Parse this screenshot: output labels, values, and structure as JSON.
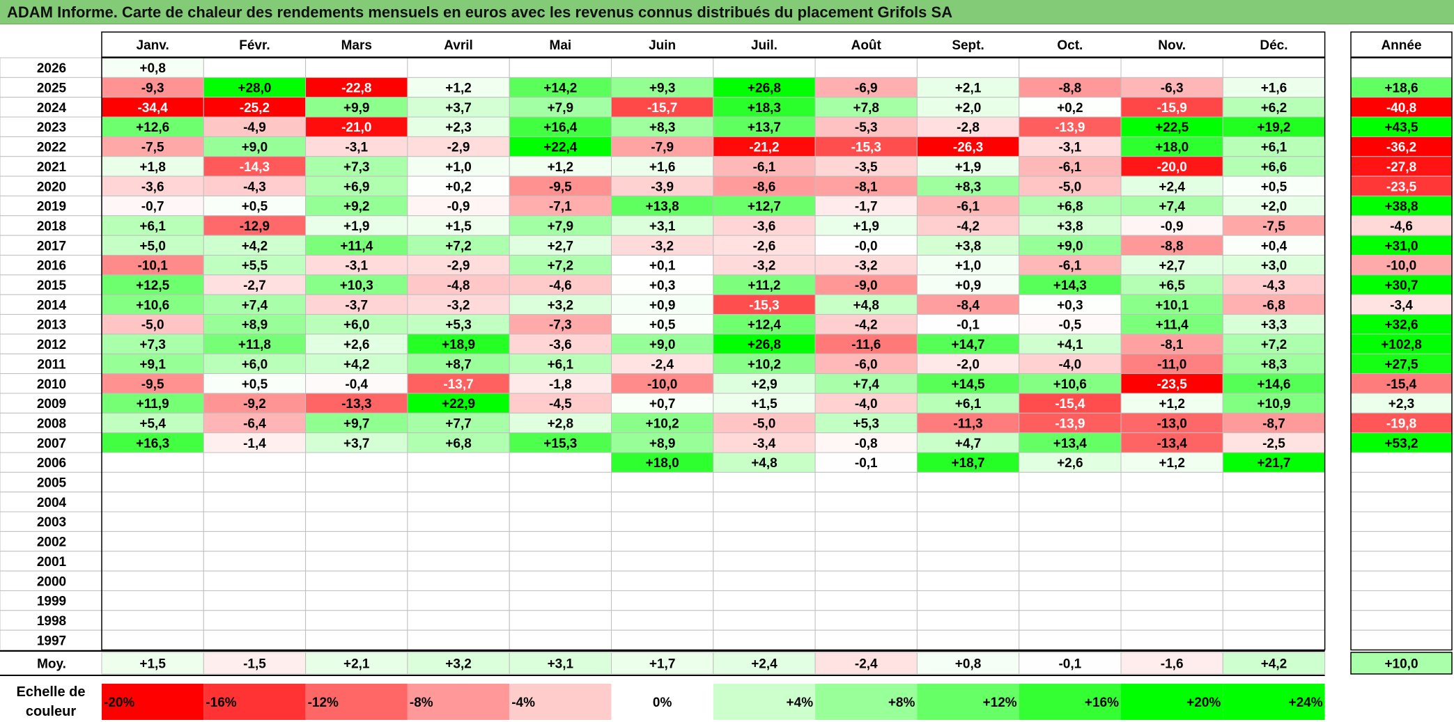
{
  "title": "ADAM Informe. Carte de chaleur des rendements mensuels en euros avec les revenus connus distribués du placement Grifols SA",
  "colors": {
    "title_bar": "#84cb77",
    "neg_max": "#ff0000",
    "neutral": "#ffffff",
    "pos_max": "#00ff00"
  },
  "chart_data": {
    "type": "heatmap",
    "title": "ADAM Informe. Carte de chaleur des rendements mensuels en euros avec les revenus connus distribués du placement Grifols SA",
    "columns": [
      "Janv.",
      "Févr.",
      "Mars",
      "Avril",
      "Mai",
      "Juin",
      "Juil.",
      "Août",
      "Sept.",
      "Oct.",
      "Nov.",
      "Déc."
    ],
    "year_column": "Année",
    "years": [
      "2026",
      "2025",
      "2024",
      "2023",
      "2022",
      "2021",
      "2020",
      "2019",
      "2018",
      "2017",
      "2016",
      "2015",
      "2014",
      "2013",
      "2012",
      "2011",
      "2010",
      "2009",
      "2008",
      "2007",
      "2006",
      "2005",
      "2004",
      "2003",
      "2002",
      "2001",
      "2000",
      "1999",
      "1998",
      "1997"
    ],
    "values": [
      [
        "+0,8",
        "",
        "",
        "",
        "",
        "",
        "",
        "",
        "",
        "",
        "",
        ""
      ],
      [
        "-9,3",
        "+28,0",
        "-22,8",
        "+1,2",
        "+14,2",
        "+9,3",
        "+26,8",
        "-6,9",
        "+2,1",
        "-8,8",
        "-6,3",
        "+1,6"
      ],
      [
        "-34,4",
        "-25,2",
        "+9,9",
        "+3,7",
        "+7,9",
        "-15,7",
        "+18,3",
        "+7,8",
        "+2,0",
        "+0,2",
        "-15,9",
        "+6,2"
      ],
      [
        "+12,6",
        "-4,9",
        "-21,0",
        "+2,3",
        "+16,4",
        "+8,3",
        "+13,7",
        "-5,3",
        "-2,8",
        "-13,9",
        "+22,5",
        "+19,2"
      ],
      [
        "-7,5",
        "+9,0",
        "-3,1",
        "-2,9",
        "+22,4",
        "-7,9",
        "-21,2",
        "-15,3",
        "-26,3",
        "-3,1",
        "+18,0",
        "+6,1"
      ],
      [
        "+1,8",
        "-14,3",
        "+7,3",
        "+1,0",
        "+1,2",
        "+1,6",
        "-6,1",
        "-3,5",
        "+1,9",
        "-6,1",
        "-20,0",
        "+6,6"
      ],
      [
        "-3,6",
        "-4,3",
        "+6,9",
        "+0,2",
        "-9,5",
        "-3,9",
        "-8,6",
        "-8,1",
        "+8,3",
        "-5,0",
        "+2,4",
        "+0,5"
      ],
      [
        "-0,7",
        "+0,5",
        "+9,2",
        "-0,9",
        "-7,1",
        "+13,8",
        "+12,7",
        "-1,7",
        "-6,1",
        "+6,8",
        "+7,4",
        "+2,0"
      ],
      [
        "+6,1",
        "-12,9",
        "+1,9",
        "+1,5",
        "+7,9",
        "+3,1",
        "-3,6",
        "+1,9",
        "-4,2",
        "+3,8",
        "-0,9",
        "-7,5"
      ],
      [
        "+5,0",
        "+4,2",
        "+11,4",
        "+7,2",
        "+2,7",
        "-3,2",
        "-2,6",
        "-0,0",
        "+3,8",
        "+9,0",
        "-8,8",
        "+0,4"
      ],
      [
        "-10,1",
        "+5,5",
        "-3,1",
        "-2,9",
        "+7,2",
        "+0,1",
        "-3,2",
        "-3,2",
        "+1,0",
        "-6,1",
        "+2,7",
        "+3,0"
      ],
      [
        "+12,5",
        "-2,7",
        "+10,3",
        "-4,8",
        "-4,6",
        "+0,3",
        "+11,2",
        "-9,0",
        "+0,9",
        "+14,3",
        "+6,5",
        "-4,3"
      ],
      [
        "+10,6",
        "+7,4",
        "-3,7",
        "-3,2",
        "+3,2",
        "+0,9",
        "-15,3",
        "+4,8",
        "-8,4",
        "+0,3",
        "+10,1",
        "-6,8"
      ],
      [
        "-5,0",
        "+8,9",
        "+6,0",
        "+5,3",
        "-7,3",
        "+0,5",
        "+12,4",
        "-4,2",
        "-0,1",
        "-0,5",
        "+11,4",
        "+3,3"
      ],
      [
        "+7,3",
        "+11,8",
        "+2,6",
        "+18,9",
        "-3,6",
        "+9,0",
        "+26,8",
        "-11,6",
        "+14,7",
        "+4,1",
        "-8,1",
        "+7,2"
      ],
      [
        "+9,1",
        "+6,0",
        "+4,2",
        "+8,7",
        "+6,1",
        "-2,4",
        "+10,2",
        "-6,0",
        "-2,0",
        "-4,0",
        "-11,0",
        "+8,3"
      ],
      [
        "-9,5",
        "+0,5",
        "-0,4",
        "-13,7",
        "-1,8",
        "-10,0",
        "+2,9",
        "+7,4",
        "+14,5",
        "+10,6",
        "-23,5",
        "+14,6"
      ],
      [
        "+11,9",
        "-9,2",
        "-13,3",
        "+22,9",
        "-4,5",
        "+0,7",
        "+1,5",
        "-4,0",
        "+6,1",
        "-15,4",
        "+1,2",
        "+10,9"
      ],
      [
        "+5,4",
        "-6,4",
        "+9,7",
        "+7,7",
        "+2,8",
        "+10,2",
        "-5,0",
        "+5,3",
        "-11,3",
        "-13,9",
        "-13,0",
        "-8,7"
      ],
      [
        "+16,3",
        "-1,4",
        "+3,7",
        "+6,8",
        "+15,3",
        "+8,9",
        "-3,4",
        "-0,8",
        "+4,7",
        "+13,4",
        "-13,4",
        "-2,5"
      ],
      [
        "",
        "",
        "",
        "",
        "",
        "+18,0",
        "+4,8",
        "-0,1",
        "+18,7",
        "+2,6",
        "+1,2",
        "+21,7"
      ],
      [
        "",
        "",
        "",
        "",
        "",
        "",
        "",
        "",
        "",
        "",
        "",
        ""
      ],
      [
        "",
        "",
        "",
        "",
        "",
        "",
        "",
        "",
        "",
        "",
        "",
        ""
      ],
      [
        "",
        "",
        "",
        "",
        "",
        "",
        "",
        "",
        "",
        "",
        "",
        ""
      ],
      [
        "",
        "",
        "",
        "",
        "",
        "",
        "",
        "",
        "",
        "",
        "",
        ""
      ],
      [
        "",
        "",
        "",
        "",
        "",
        "",
        "",
        "",
        "",
        "",
        "",
        ""
      ],
      [
        "",
        "",
        "",
        "",
        "",
        "",
        "",
        "",
        "",
        "",
        "",
        ""
      ],
      [
        "",
        "",
        "",
        "",
        "",
        "",
        "",
        "",
        "",
        "",
        "",
        ""
      ],
      [
        "",
        "",
        "",
        "",
        "",
        "",
        "",
        "",
        "",
        "",
        "",
        ""
      ],
      [
        "",
        "",
        "",
        "",
        "",
        "",
        "",
        "",
        "",
        "",
        "",
        ""
      ]
    ],
    "year_values": [
      "",
      "+18,6",
      "-40,8",
      "+43,5",
      "-36,2",
      "-27,8",
      "-23,5",
      "+38,8",
      "-4,6",
      "+31,0",
      "-10,0",
      "+30,7",
      "-3,4",
      "+32,6",
      "+102,8",
      "+27,5",
      "-15,4",
      "+2,3",
      "-19,8",
      "+53,2",
      "",
      "",
      "",
      "",
      "",
      "",
      "",
      "",
      "",
      ""
    ],
    "average_label": "Moy.",
    "averages": [
      "+1,5",
      "-1,5",
      "+2,1",
      "+3,2",
      "+3,1",
      "+1,7",
      "+2,4",
      "-2,4",
      "+0,8",
      "-0,1",
      "-1,6",
      "+4,2"
    ],
    "average_year": "+10,0",
    "scale_label": "Echelle de couleur",
    "scale": [
      "-20%",
      "-16%",
      "-12%",
      "-8%",
      "-4%",
      "0%",
      "+4%",
      "+8%",
      "+12%",
      "+16%",
      "+20%",
      "+24%"
    ]
  }
}
